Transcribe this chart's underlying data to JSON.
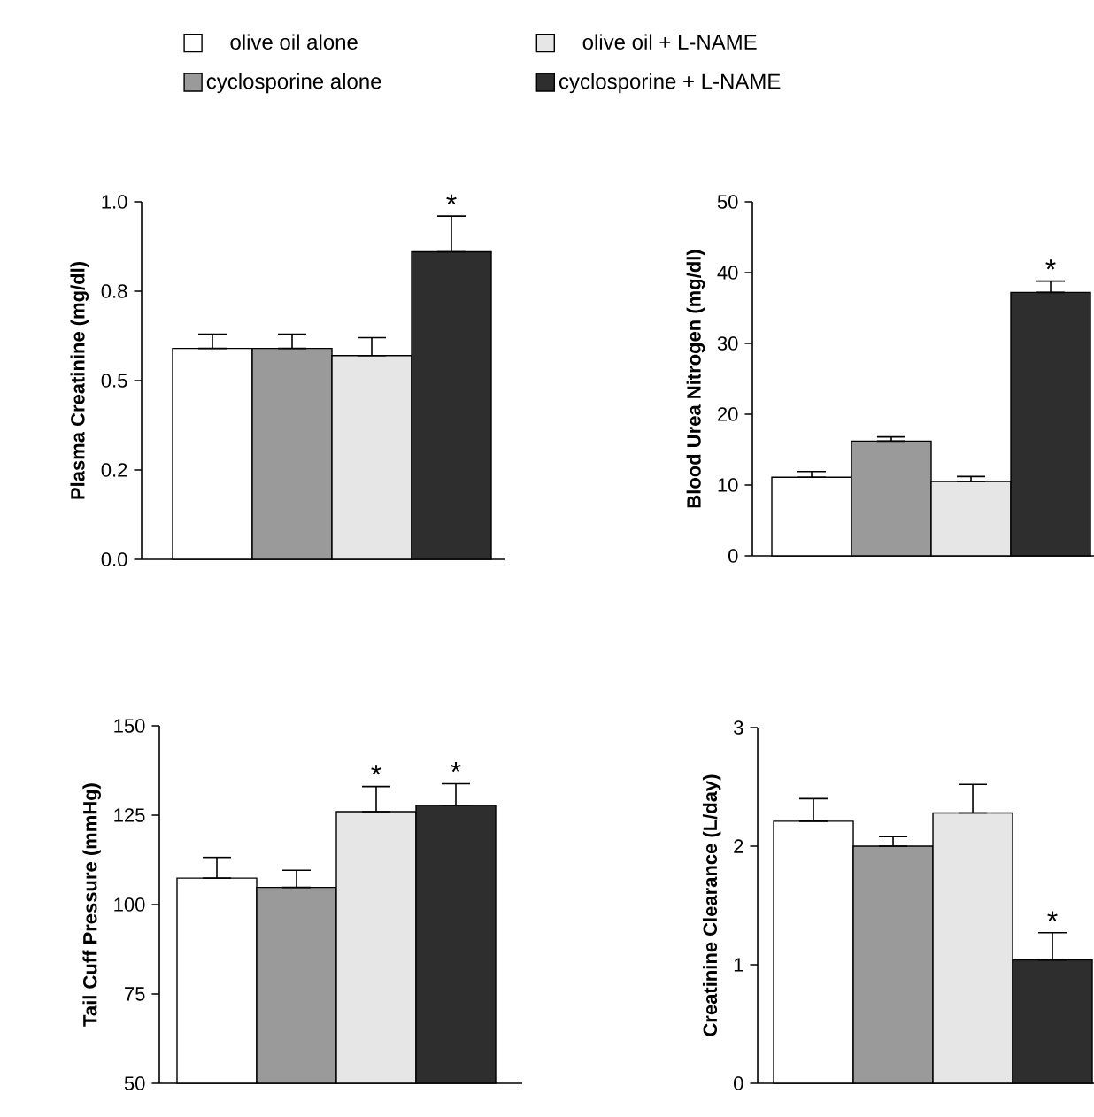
{
  "chart_data": [
    {
      "type": "bar",
      "ylabel": "Plasma Creatinine (mg/dl)",
      "categories": [
        null
      ],
      "ylim": [
        0,
        1.0
      ],
      "yticks": [
        {
          "value": 0,
          "label": "0.0"
        },
        {
          "value": 0.25,
          "label": "0.2"
        },
        {
          "value": 0.5,
          "label": "0.5"
        },
        {
          "value": 0.75,
          "label": "0.8"
        },
        {
          "value": 1.0,
          "label": "1.0"
        }
      ],
      "series": [
        {
          "name": "olive oil alone",
          "color": "#ffffff",
          "values": [
            0.59
          ],
          "errors": [
            [
              0.59,
              0.63
            ]
          ]
        },
        {
          "name": "cyclosporine alone",
          "color": "#9a9a9a",
          "values": [
            0.59
          ],
          "errors": [
            [
              0.59,
              0.63
            ]
          ]
        },
        {
          "name": "olive oil + L-NAME",
          "color": "#e6e6e6",
          "values": [
            0.57
          ],
          "errors": [
            [
              0.57,
              0.62
            ]
          ]
        },
        {
          "name": "cyclosporine + L-NAME",
          "color": "#2e2e2e",
          "values": [
            0.86
          ],
          "errors": [
            [
              0.86,
              0.96
            ]
          ]
        }
      ],
      "annotations": [
        {
          "text": "*",
          "y": 0.96
        }
      ],
      "legend": "top",
      "tick_labels": "y"
    },
    {
      "type": "bar",
      "ylabel": "Blood Urea Nitrogen (mg/dl)",
      "categories": [
        null
      ],
      "ylim": [
        0,
        50
      ],
      "yticks": [
        0,
        10,
        20,
        30,
        40,
        50
      ],
      "series": [
        {
          "color": "#ffffff",
          "values": [
            11.1
          ],
          "errors": [
            [
              11.1,
              11.9
            ]
          ]
        },
        {
          "color": "#9a9a9a",
          "values": [
            16.2
          ],
          "errors": [
            [
              16.2,
              16.8
            ]
          ]
        },
        {
          "color": "#e6e6e6",
          "values": [
            10.5
          ],
          "errors": [
            [
              10.5,
              11.2
            ]
          ]
        },
        {
          "color": "#2e2e2e",
          "values": [
            37.2
          ],
          "errors": [
            [
              37.2,
              38.8
            ]
          ]
        }
      ],
      "annotations": [
        {
          "text": "*",
          "y": 38.8
        }
      ],
      "tick_labels": "y"
    },
    {
      "type": "bar",
      "ylabel": "Tail Cuff Pressure (mmHg)",
      "categories": [
        null
      ],
      "ylim": [
        50,
        150
      ],
      "yticks": [
        50,
        75,
        100,
        125,
        150
      ],
      "series": [
        {
          "color": "#ffffff",
          "values": [
            107.4
          ],
          "errors": [
            [
              107.4,
              113.2
            ]
          ]
        },
        {
          "color": "#9a9a9a",
          "values": [
            104.8
          ],
          "errors": [
            [
              104.8,
              109.6
            ]
          ]
        },
        {
          "color": "#e6e6e6",
          "values": [
            126.0
          ],
          "errors": [
            [
              126.0,
              133.0
            ]
          ]
        },
        {
          "color": "#2e2e2e",
          "values": [
            127.8
          ],
          "errors": [
            [
              127.8,
              133.8
            ]
          ]
        }
      ],
      "annotations": [
        {
          "text": "*",
          "y": 133.0
        },
        {
          "text": "*",
          "y": 133.8
        }
      ],
      "tick_labels": "y"
    },
    {
      "type": "bar",
      "ylabel": "Creatinine Clearance (L/day)",
      "categories": [
        null
      ],
      "ylim": [
        0,
        3
      ],
      "yticks": [
        0,
        1,
        2,
        3
      ],
      "series": [
        {
          "color": "#ffffff",
          "values": [
            2.21
          ],
          "errors": [
            [
              2.21,
              2.4
            ]
          ]
        },
        {
          "color": "#9a9a9a",
          "values": [
            2.0
          ],
          "errors": [
            [
              2.0,
              2.08
            ]
          ]
        },
        {
          "color": "#e6e6e6",
          "values": [
            2.28
          ],
          "errors": [
            [
              2.28,
              2.52
            ]
          ]
        },
        {
          "color": "#2e2e2e",
          "values": [
            1.04
          ],
          "errors": [
            [
              1.04,
              1.27
            ]
          ]
        }
      ],
      "annotations": [
        {
          "text": "*",
          "y": 1.27
        }
      ],
      "tick_labels": "y"
    }
  ]
}
